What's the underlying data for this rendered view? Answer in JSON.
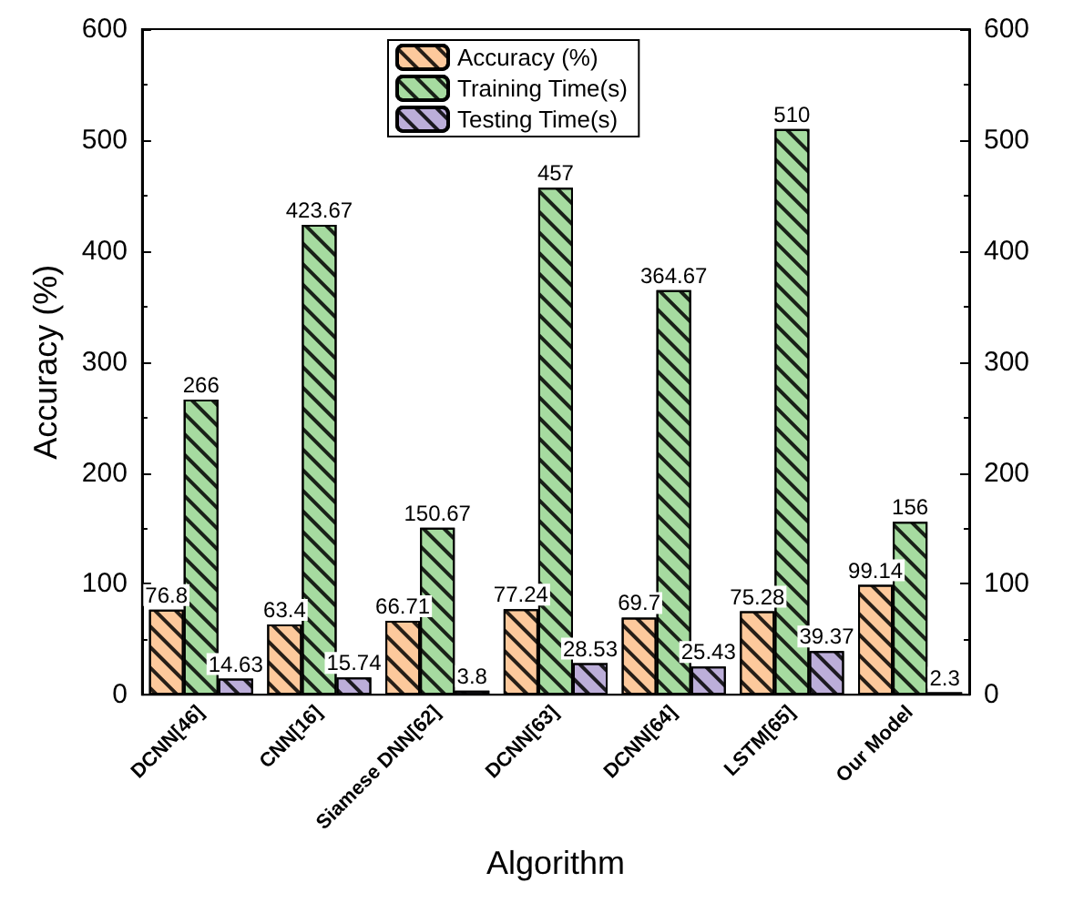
{
  "chart_data": {
    "type": "bar",
    "xlabel": "Algorithm",
    "ylabel": "Accuracy (%)",
    "categories": [
      "DCNN[46]",
      "CNN[16]",
      "Siamese DNN[62]",
      "DCNN[63]",
      "DCNN[64]",
      "LSTM[65]",
      "Our Model"
    ],
    "series": [
      {
        "name": "Accuracy (%)",
        "color": "#fdc99c",
        "values": [
          76.8,
          63.4,
          66.71,
          77.24,
          69.7,
          75.28,
          99.14
        ]
      },
      {
        "name": "Training Time(s)",
        "color": "#a6dba0",
        "values": [
          266,
          423.67,
          150.67,
          457,
          364.67,
          510,
          156
        ]
      },
      {
        "name": "Testing Time(s)",
        "color": "#bcaed9",
        "values": [
          14.63,
          15.74,
          3.8,
          28.53,
          25.43,
          39.37,
          2.3
        ]
      }
    ],
    "ylim": [
      0,
      600
    ],
    "yticks": [
      0,
      100,
      200,
      300,
      400,
      500,
      600
    ],
    "y2lim": [
      0,
      600
    ],
    "y2ticks": [
      0,
      100,
      200,
      300,
      400,
      500,
      600
    ],
    "data_labels": true,
    "grid": false,
    "legend": "top"
  }
}
